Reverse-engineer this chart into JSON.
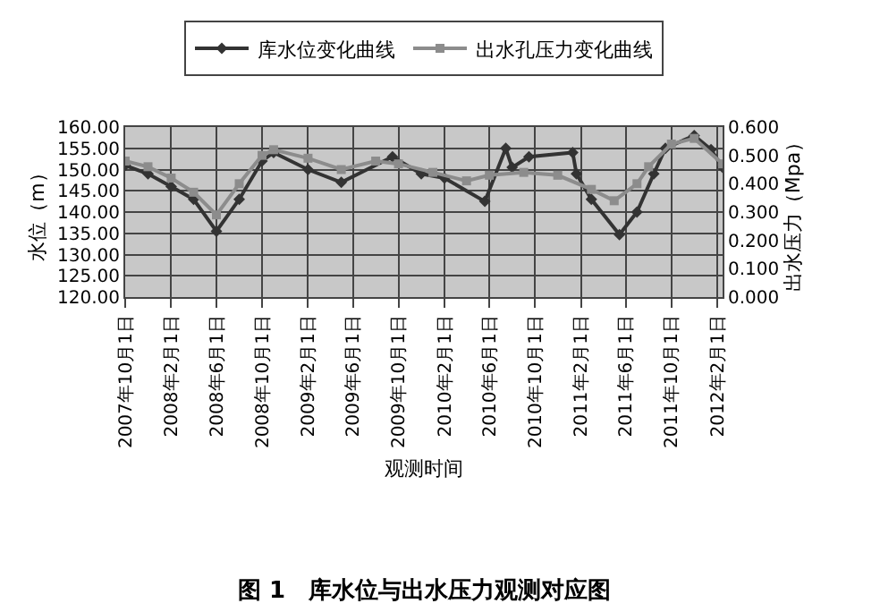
{
  "chart_data": {
    "type": "line",
    "xlabel": "观测时间",
    "ylabel": "水位（m）",
    "y2label": "出水压力（Mpa）",
    "annotations": [
      "图 1　库水位与出水压力观测对应图"
    ],
    "xlim": [
      "2007-10-01",
      "2012-02-15"
    ],
    "xticks": [
      {
        "value": "2007-10-01",
        "label": "2007年10月1日"
      },
      {
        "value": "2008-02-01",
        "label": "2008年2月1日"
      },
      {
        "value": "2008-06-01",
        "label": "2008年6月1日"
      },
      {
        "value": "2008-10-01",
        "label": "2008年10月1日"
      },
      {
        "value": "2009-02-01",
        "label": "2009年2月1日"
      },
      {
        "value": "2009-06-01",
        "label": "2009年6月1日"
      },
      {
        "value": "2009-10-01",
        "label": "2009年10月1日"
      },
      {
        "value": "2010-02-01",
        "label": "2010年2月1日"
      },
      {
        "value": "2010-06-01",
        "label": "2010年6月1日"
      },
      {
        "value": "2010-10-01",
        "label": "2010年10月1日"
      },
      {
        "value": "2011-02-01",
        "label": "2011年2月1日"
      },
      {
        "value": "2011-06-01",
        "label": "2011年6月1日"
      },
      {
        "value": "2011-10-01",
        "label": "2011年10月1日"
      },
      {
        "value": "2012-02-01",
        "label": "2012年2月1日"
      }
    ],
    "ylim": [
      120,
      160
    ],
    "yticks": [
      {
        "value": 120,
        "label": "120.00"
      },
      {
        "value": 125,
        "label": "125.00"
      },
      {
        "value": 130,
        "label": "130.00"
      },
      {
        "value": 135,
        "label": "135.00"
      },
      {
        "value": 140,
        "label": "140.00"
      },
      {
        "value": 145,
        "label": "145.00"
      },
      {
        "value": 150,
        "label": "150.00"
      },
      {
        "value": 155,
        "label": "155.00"
      },
      {
        "value": 160,
        "label": "160.00"
      }
    ],
    "y2lim": [
      0,
      0.6
    ],
    "y2ticks": [
      {
        "value": 0,
        "label": "0.000"
      },
      {
        "value": 0.1,
        "label": "0.100"
      },
      {
        "value": 0.2,
        "label": "0.200"
      },
      {
        "value": 0.3,
        "label": "0.300"
      },
      {
        "value": 0.4,
        "label": "0.400"
      },
      {
        "value": 0.5,
        "label": "0.500"
      },
      {
        "value": 0.6,
        "label": "0.600"
      }
    ],
    "grid": true,
    "legend": "top",
    "line_style": "solid",
    "series": [
      {
        "name": "库水位变化曲线",
        "color": "#333333",
        "marker": "diamond",
        "x": [
          "2007-10-01",
          "2007-12-01",
          "2008-02-01",
          "2008-04-01",
          "2008-06-01",
          "2008-08-01",
          "2008-10-01",
          "2008-11-01",
          "2009-02-01",
          "2009-05-01",
          "2009-09-15",
          "2009-12-01",
          "2010-02-01",
          "2010-05-20",
          "2010-07-15",
          "2010-08-01",
          "2010-09-15",
          "2011-01-10",
          "2011-01-20",
          "2011-03-01",
          "2011-05-15",
          "2011-07-01",
          "2011-08-15",
          "2011-09-15",
          "2011-12-01",
          "2012-01-15",
          "2012-02-15"
        ],
        "values": [
          151,
          149,
          146,
          143,
          135.5,
          143,
          152,
          154,
          150,
          147,
          153,
          149,
          148,
          142.5,
          155,
          150.5,
          153,
          154,
          149,
          143,
          134.7,
          140,
          149,
          155,
          158,
          154.7,
          150.5
        ]
      },
      {
        "name": "出水孔压力变化曲线",
        "color": "#8c8c8c",
        "marker": "square",
        "axis": "y2",
        "x": [
          "2007-10-01",
          "2007-12-01",
          "2008-02-01",
          "2008-04-01",
          "2008-06-01",
          "2008-08-01",
          "2008-10-01",
          "2008-11-01",
          "2009-02-01",
          "2009-05-01",
          "2009-08-01",
          "2009-10-01",
          "2010-01-01",
          "2010-04-01",
          "2010-06-01",
          "2010-09-01",
          "2010-12-01",
          "2011-03-01",
          "2011-05-01",
          "2011-07-01",
          "2011-08-01",
          "2011-10-01",
          "2011-12-01",
          "2012-02-15"
        ],
        "values": [
          0.48,
          0.46,
          0.42,
          0.37,
          0.29,
          0.4,
          0.5,
          0.52,
          0.49,
          0.45,
          0.48,
          0.47,
          0.44,
          0.41,
          0.43,
          0.44,
          0.43,
          0.38,
          0.34,
          0.4,
          0.46,
          0.54,
          0.56,
          0.47
        ]
      }
    ]
  }
}
